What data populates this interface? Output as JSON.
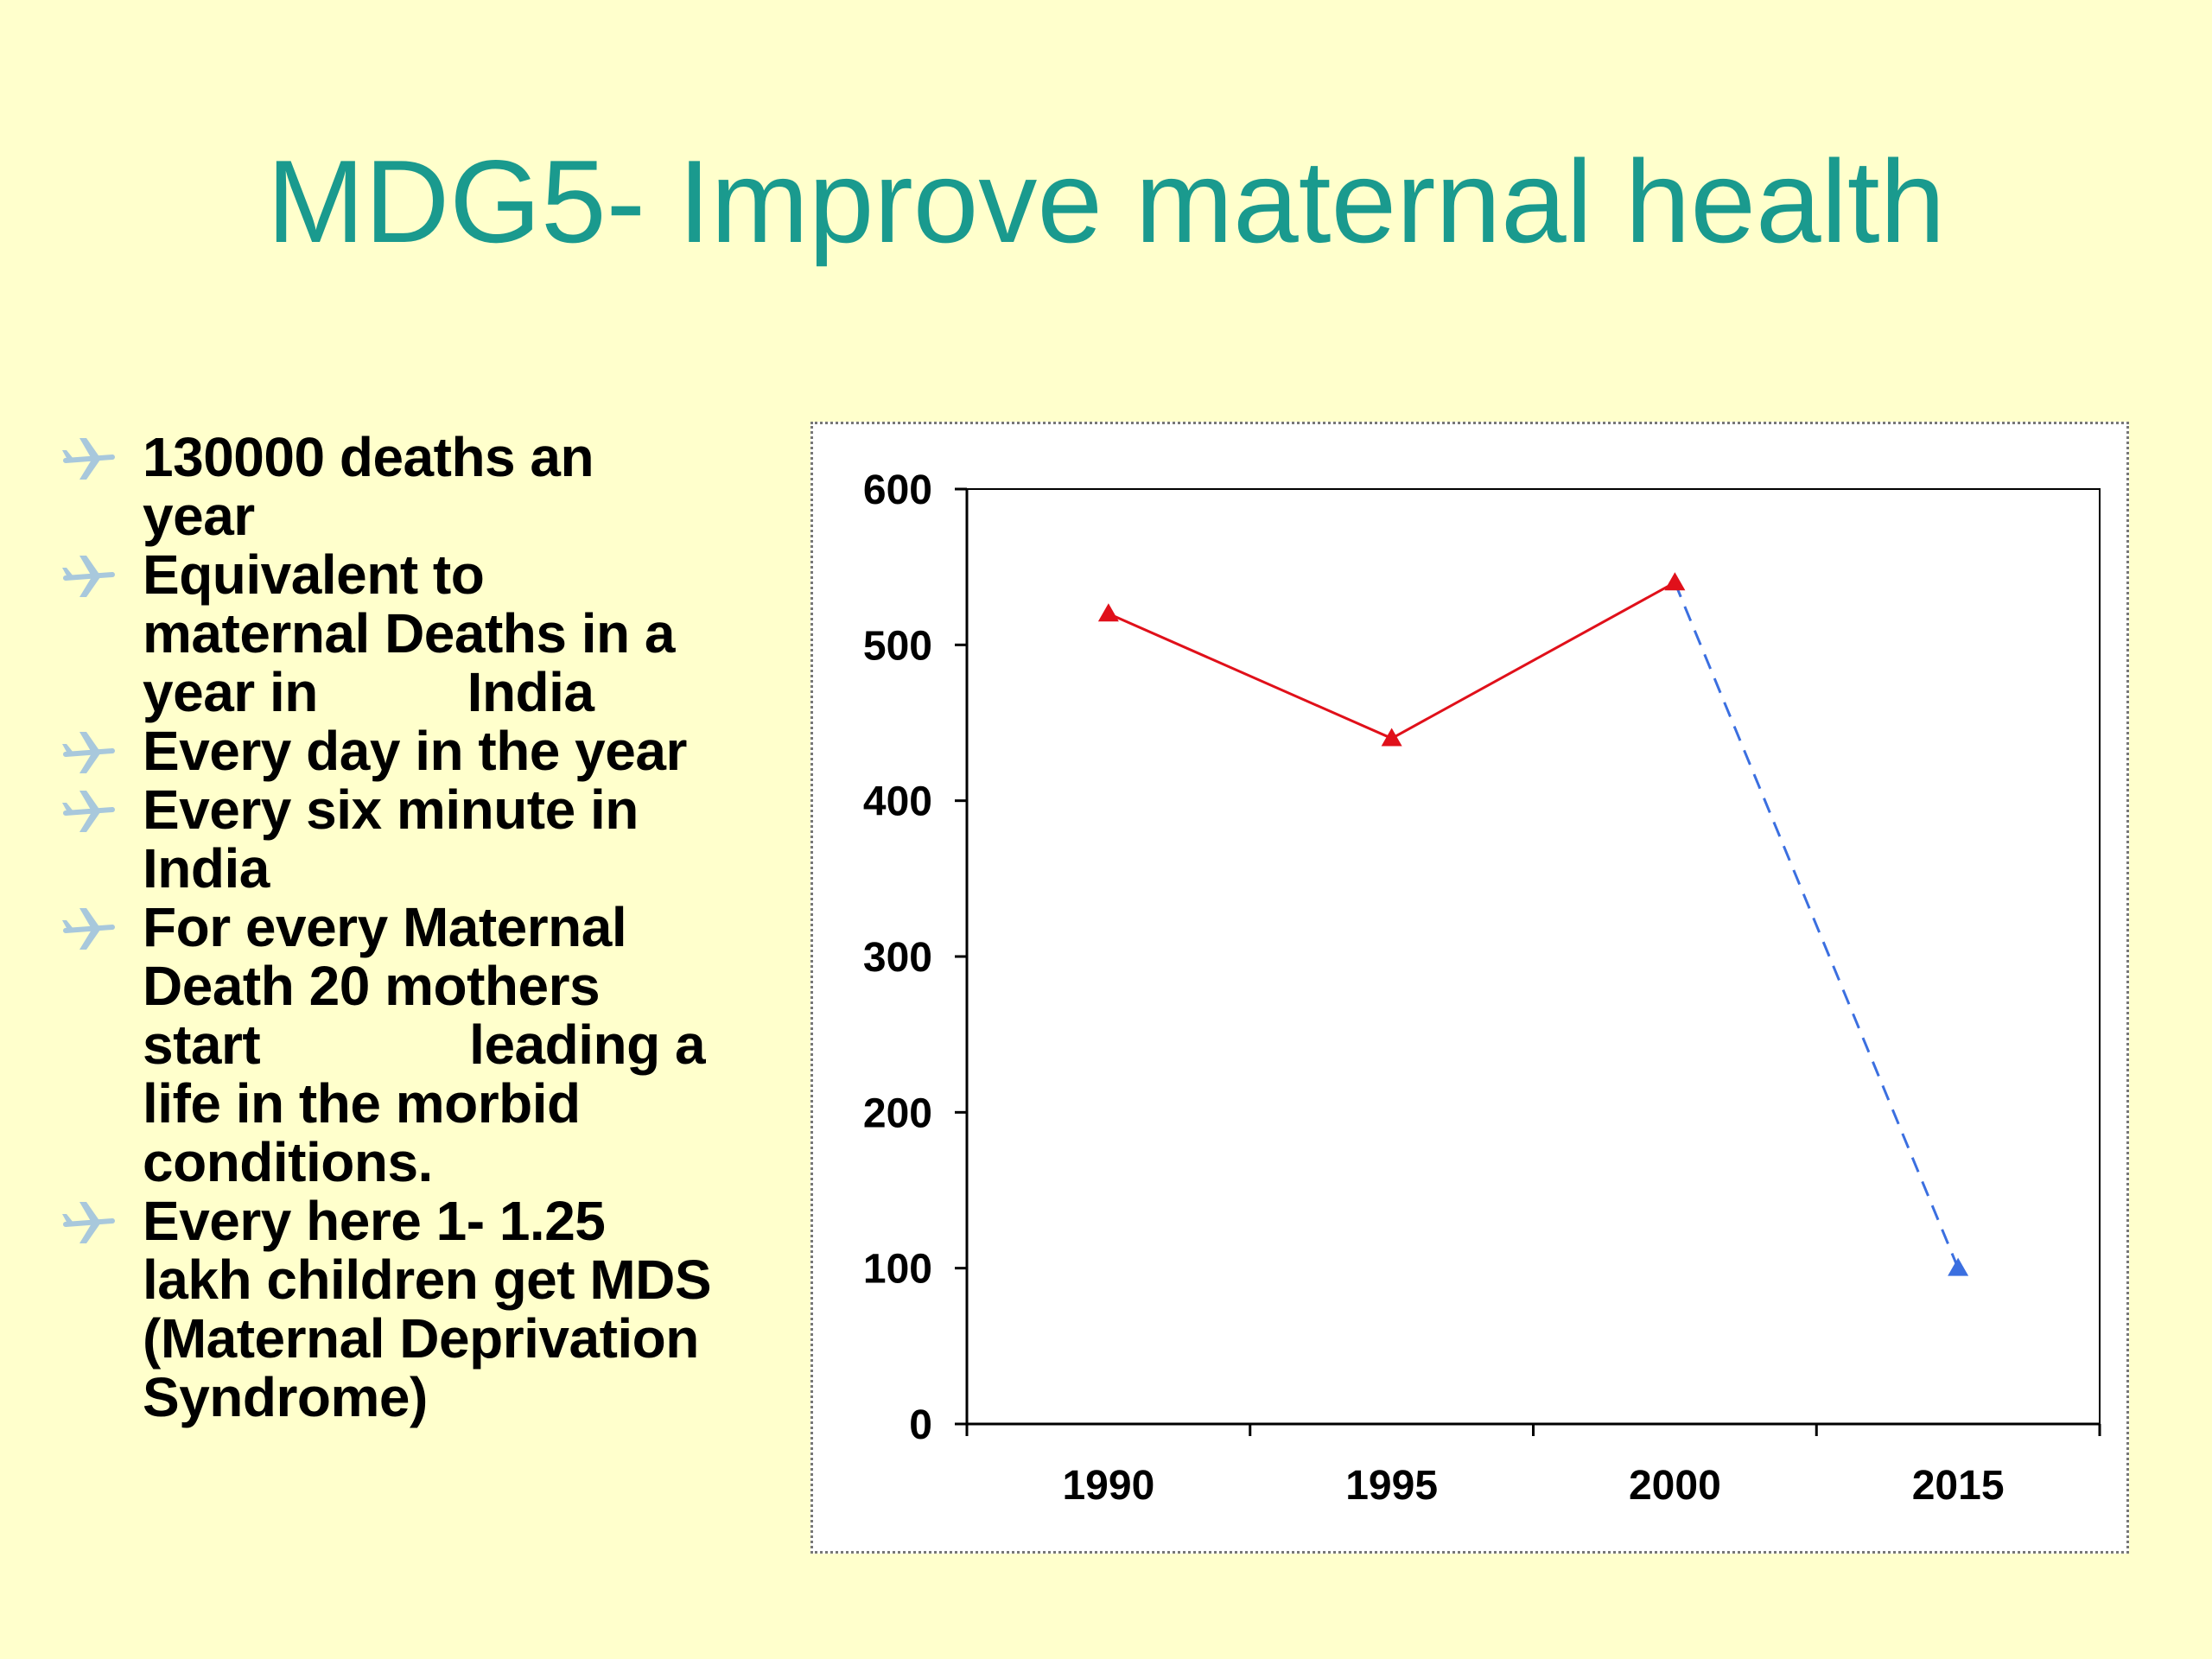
{
  "slide": {
    "title": "MDG5- Improve maternal health"
  },
  "bullets": [
    {
      "icon": "airplane-bullet-icon",
      "lines": [
        "130000 deaths an",
        "year"
      ]
    },
    {
      "icon": "airplane-bullet-icon",
      "lines": [
        "Equivalent to",
        "maternal Deaths in a",
        "year in          India"
      ]
    },
    {
      "icon": "airplane-bullet-icon",
      "lines": [
        "Every day in the year"
      ]
    },
    {
      "icon": "airplane-bullet-icon",
      "lines": [
        "Every six minute in",
        "India"
      ]
    },
    {
      "icon": "airplane-bullet-icon",
      "lines": [
        "For every Maternal",
        "Death 20 mothers",
        "start              leading a",
        "life in the morbid",
        "conditions."
      ]
    },
    {
      "icon": "airplane-bullet-icon",
      "lines": [
        "Every here 1- 1.25",
        "lakh children get MDS",
        "(Maternal Deprivation",
        "Syndrome)"
      ]
    }
  ],
  "colors": {
    "title": "#1a9a8e",
    "background": "#ffffcc",
    "actual_series": "#e0101a",
    "target_series": "#3b6fe0",
    "bullet_icon": "#a8c8dc"
  },
  "chart_data": {
    "type": "line",
    "categories": [
      "1990",
      "1995",
      "2000",
      "2015"
    ],
    "series": [
      {
        "values": [
          520,
          440,
          540,
          null
        ],
        "color": "#e0101a",
        "style": "solid",
        "marker": "triangle"
      },
      {
        "values": [
          null,
          null,
          540,
          100
        ],
        "color": "#3b6fe0",
        "style": "dashed",
        "marker": "triangle"
      }
    ],
    "yticks": [
      0,
      100,
      200,
      300,
      400,
      500,
      600
    ],
    "ylim": [
      0,
      600
    ],
    "title": "",
    "xlabel": "",
    "ylabel": "",
    "grid": false,
    "legend": "none"
  }
}
